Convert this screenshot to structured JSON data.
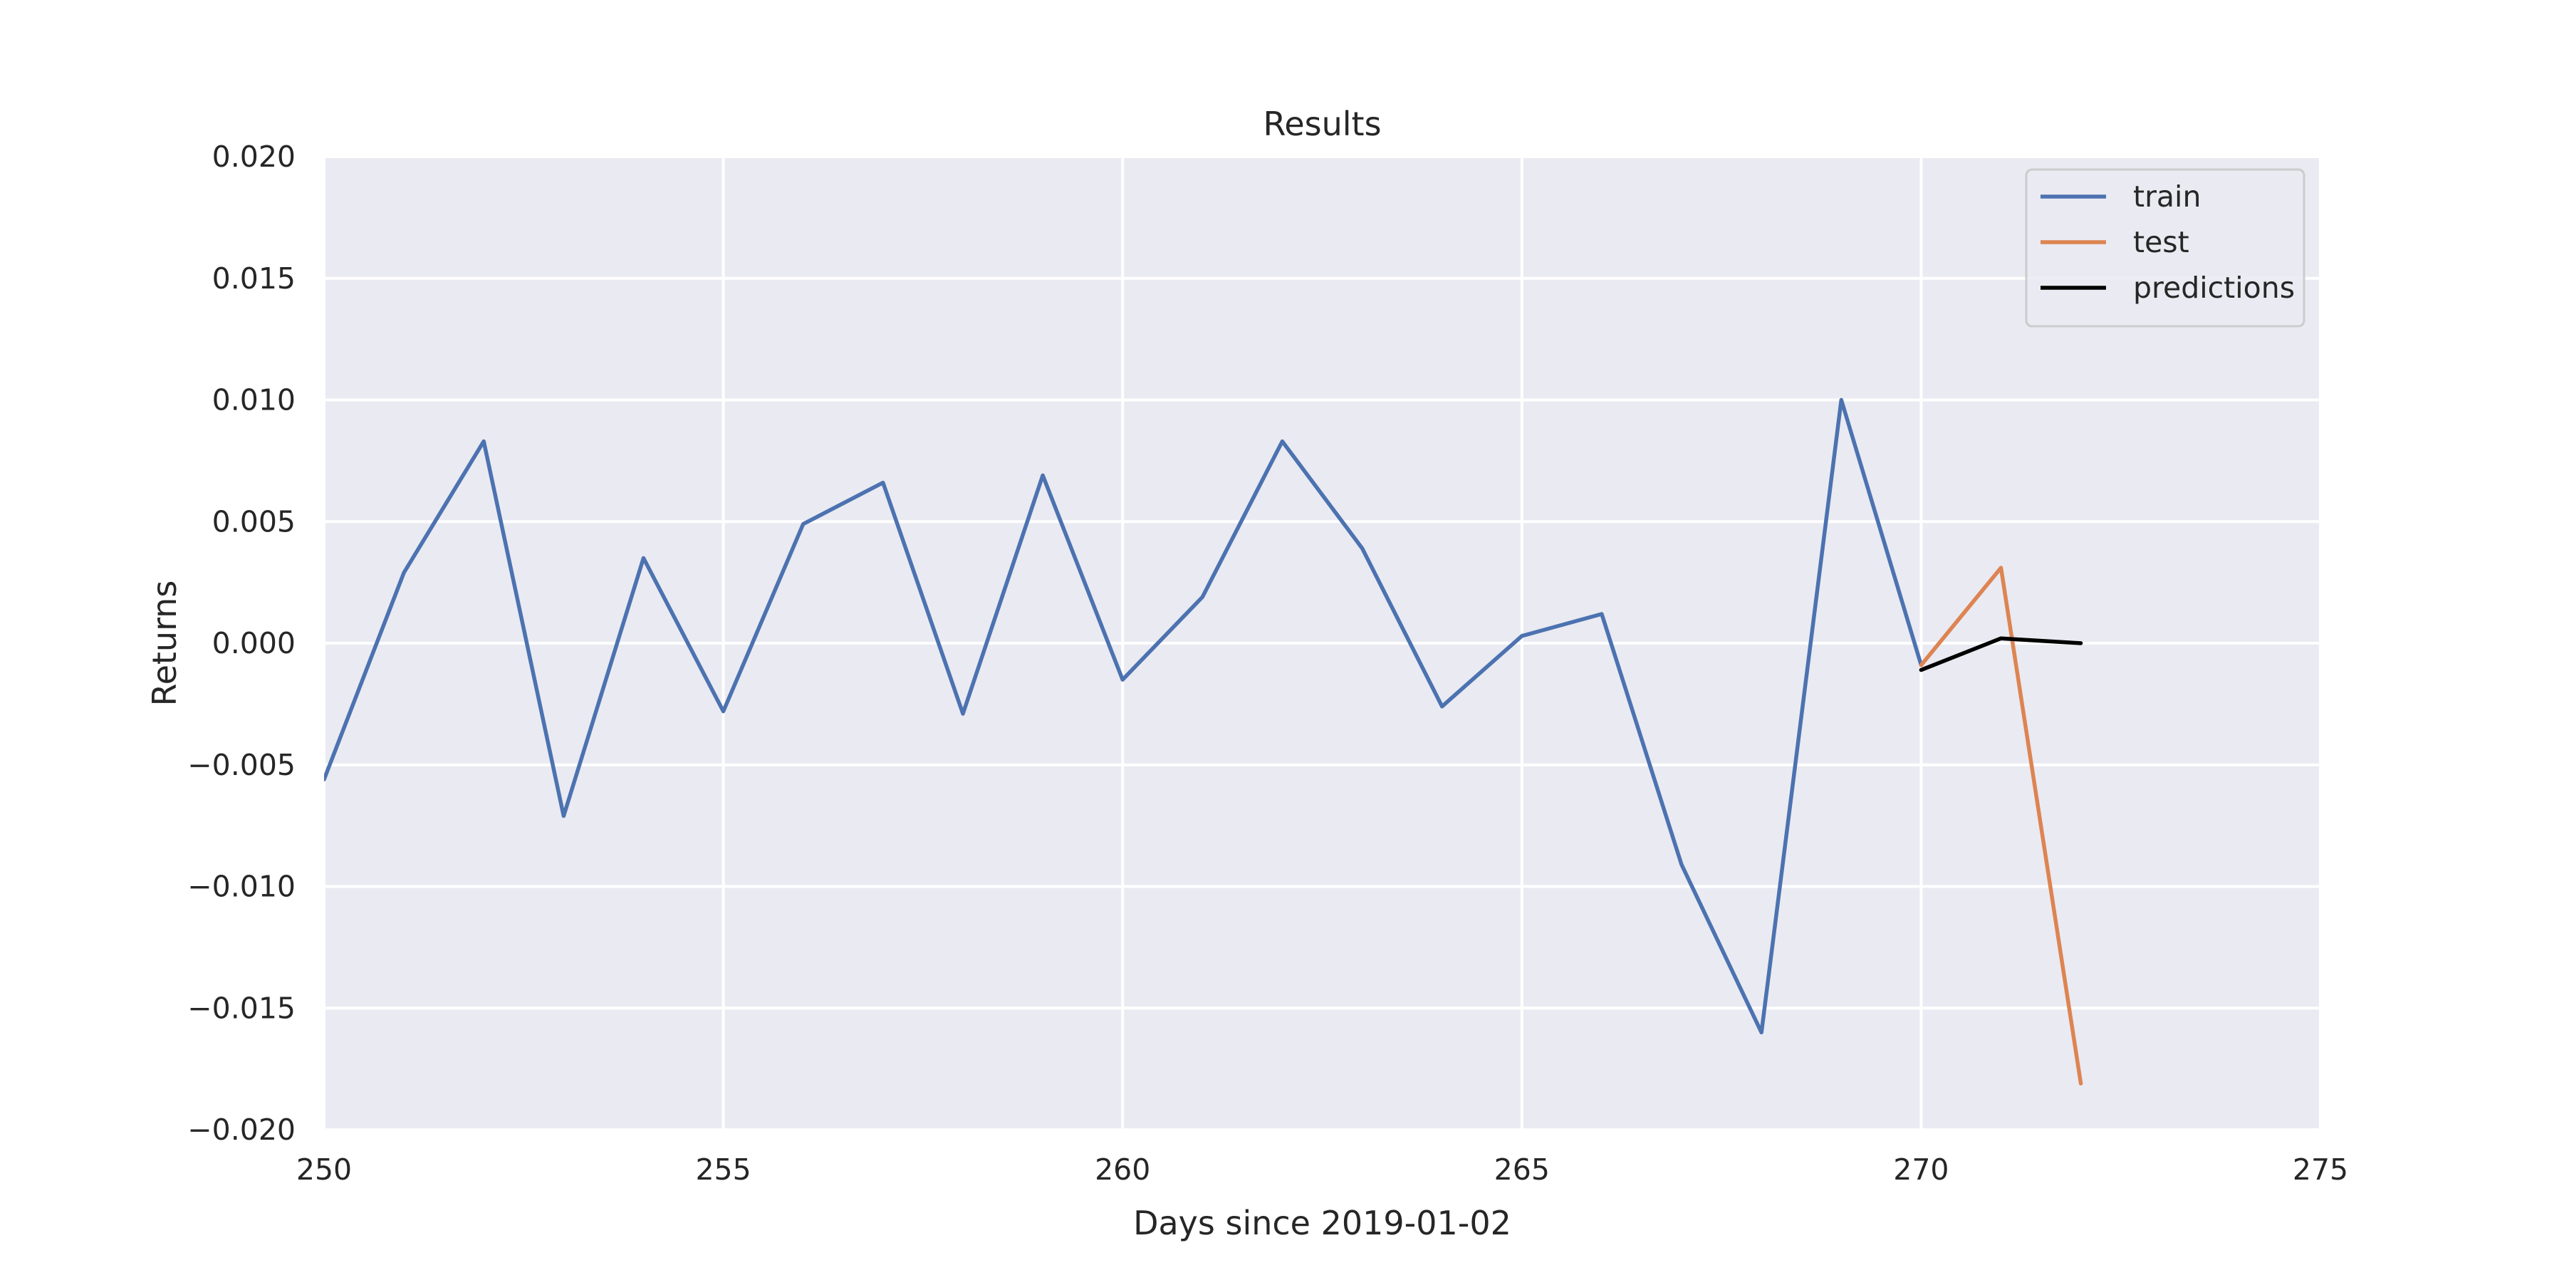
{
  "chart_data": {
    "type": "line",
    "title": "Results",
    "xlabel": "Days since 2019-01-02",
    "ylabel": "Returns",
    "xlim": [
      250,
      275
    ],
    "ylim": [
      -0.02,
      0.02
    ],
    "xticks": [
      250,
      255,
      260,
      265,
      270,
      275
    ],
    "xtick_labels": [
      "250",
      "255",
      "260",
      "265",
      "270",
      "275"
    ],
    "yticks": [
      -0.02,
      -0.015,
      -0.01,
      -0.005,
      0.0,
      0.005,
      0.01,
      0.015,
      0.02
    ],
    "ytick_labels": [
      "−0.020",
      "−0.015",
      "−0.010",
      "−0.005",
      "0.000",
      "0.005",
      "0.010",
      "0.015",
      "0.020"
    ],
    "grid": true,
    "legend_position": "top-right",
    "background_color": "#eaeaf2",
    "grid_color": "#ffffff",
    "series": [
      {
        "name": "train",
        "color": "#4c72b0",
        "x": [
          250,
          251,
          252,
          253,
          254,
          255,
          256,
          257,
          258,
          259,
          260,
          261,
          262,
          263,
          264,
          265,
          266,
          267,
          268,
          269,
          270
        ],
        "y": [
          -0.0056,
          0.0029,
          0.0083,
          -0.0071,
          0.0035,
          -0.0028,
          0.0049,
          0.0066,
          -0.0029,
          0.0069,
          -0.0015,
          0.0019,
          0.0083,
          0.0039,
          -0.0026,
          0.0003,
          0.0012,
          -0.0091,
          -0.016,
          0.01,
          -0.0009
        ]
      },
      {
        "name": "test",
        "color": "#dd8452",
        "x": [
          270,
          271,
          272
        ],
        "y": [
          -0.0009,
          0.0031,
          -0.0181
        ]
      },
      {
        "name": "predictions",
        "color": "#000000",
        "x": [
          270,
          271,
          272
        ],
        "y": [
          -0.0011,
          0.0002,
          0.0
        ]
      }
    ]
  }
}
